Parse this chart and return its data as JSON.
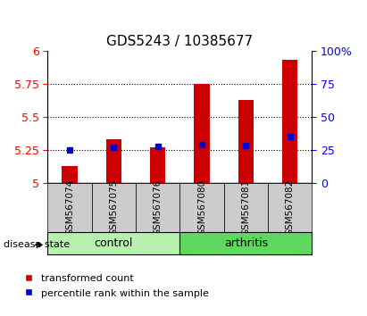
{
  "title": "GDS5243 / 10385677",
  "samples": [
    "GSM567074",
    "GSM567075",
    "GSM567076",
    "GSM567080",
    "GSM567081",
    "GSM567082"
  ],
  "red_bar_values": [
    5.13,
    5.335,
    5.27,
    5.75,
    5.63,
    5.93
  ],
  "blue_dot_values": [
    5.25,
    5.27,
    5.275,
    5.29,
    5.285,
    5.35
  ],
  "ylim": [
    5.0,
    6.0
  ],
  "y_ticks_left": [
    5.0,
    5.25,
    5.5,
    5.75,
    6.0
  ],
  "y_ticks_right": [
    0,
    25,
    50,
    75,
    100
  ],
  "grid_lines": [
    5.25,
    5.5,
    5.75
  ],
  "groups": [
    {
      "label": "control",
      "start": 0,
      "end": 3,
      "color": "#b8f0b0"
    },
    {
      "label": "arthritis",
      "start": 3,
      "end": 6,
      "color": "#60d860"
    }
  ],
  "bar_color": "#cc0000",
  "dot_color": "#0000cc",
  "bar_width": 0.35,
  "disease_label": "disease state",
  "legend_red": "transformed count",
  "legend_blue": "percentile rank within the sample",
  "x_tick_bg": "#cccccc",
  "title_fontsize": 11,
  "axis_label_fontsize": 9,
  "tick_fontsize": 9
}
